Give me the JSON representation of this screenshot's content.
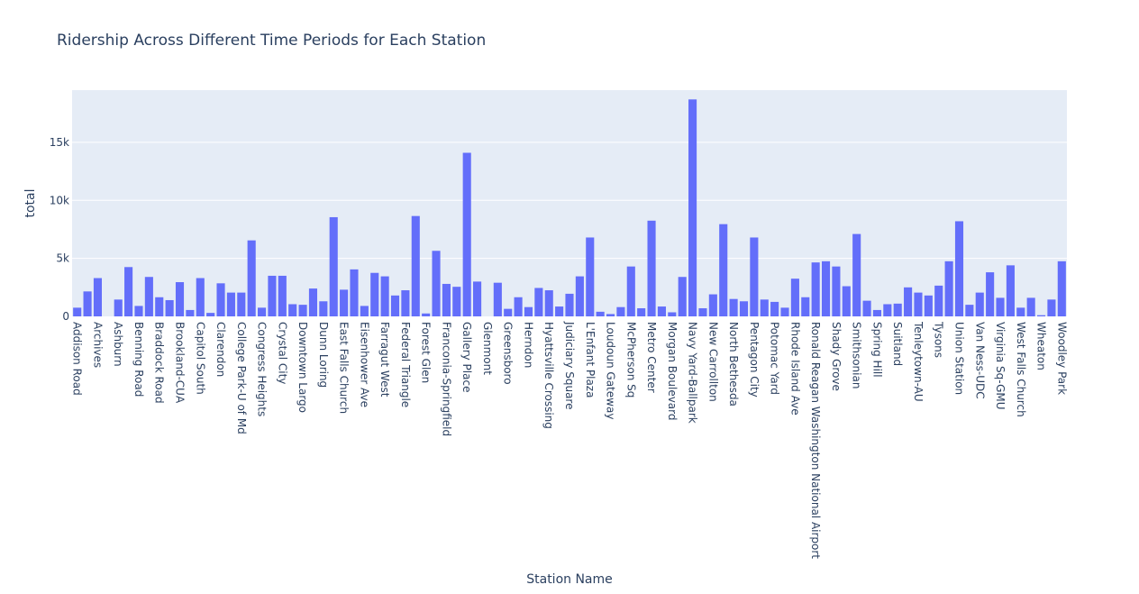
{
  "chart_data": {
    "type": "bar",
    "title": "Ridership Across Different Time Periods for Each Station",
    "xlabel": "Station Name",
    "ylabel": "total",
    "ylim": [
      0,
      19500
    ],
    "yticks": [
      0,
      5000,
      10000,
      15000
    ],
    "ytick_labels": [
      "0",
      "5k",
      "10k",
      "15k"
    ],
    "grid": true,
    "bar_color": "#636efa",
    "plot_bg": "#e5ecf6",
    "categories": [
      "Addison Road",
      "",
      "Archives",
      "",
      "Ashburn",
      "",
      "Benning Road",
      "",
      "Braddock Road",
      "",
      "Brookland-CUA",
      "",
      "Capitol South",
      "",
      "Clarendon",
      "",
      "College Park-U of Md",
      "",
      "Congress Heights",
      "",
      "Crystal City",
      "",
      "Downtown Largo",
      "",
      "Dunn Loring",
      "",
      "East Falls Church",
      "",
      "Eisenhower Ave",
      "",
      "Farragut West",
      "",
      "Federal Triangle",
      "",
      "Forest Glen",
      "",
      "Franconia-Springfield",
      "",
      "Gallery Place",
      "",
      "Glenmont",
      "",
      "Greensboro",
      "",
      "Herndon",
      "",
      "Hyattsville Crossing",
      "",
      "Judiciary Square",
      "",
      "L'Enfant Plaza",
      "",
      "Loudoun Gateway",
      "",
      "McPherson Sq",
      "",
      "Metro Center",
      "",
      "Morgan Boulevard",
      "",
      "Navy Yard-Ballpark",
      "",
      "New Carrollton",
      "",
      "North Bethesda",
      "",
      "Pentagon City",
      "",
      "Potomac Yard",
      "",
      "Rhode Island Ave",
      "",
      "Ronald Reagan Washington National Airport",
      "",
      "Shady Grove",
      "",
      "Smithsonian",
      "",
      "Spring Hill",
      "",
      "Suitland",
      "",
      "Tenleytown-AU",
      "",
      "Tysons",
      "",
      "Union Station",
      "",
      "Van Ness-UDC",
      "",
      "Virginia Sq-GMU",
      "",
      "West Falls Church",
      "",
      "Wheaton",
      "",
      "Woodley Park"
    ],
    "values": [
      750,
      2150,
      3300,
      0,
      1450,
      4250,
      900,
      3400,
      1650,
      1400,
      2950,
      550,
      3300,
      300,
      2850,
      2050,
      2050,
      6550,
      750,
      3500,
      3500,
      1050,
      1000,
      2400,
      1300,
      8550,
      2300,
      4050,
      900,
      3750,
      3450,
      1800,
      2250,
      8650,
      250,
      5650,
      2800,
      2550,
      14100,
      3000,
      0,
      2900,
      650,
      1650,
      800,
      2450,
      2250,
      850,
      1950,
      3450,
      6800,
      400,
      200,
      800,
      4300,
      700,
      8250,
      850,
      350,
      3400,
      18700,
      700,
      1900,
      7950,
      1500,
      1300,
      6800,
      1450,
      1250,
      750,
      3250,
      1650,
      4650,
      4750,
      4300,
      2600,
      7100,
      1350,
      550,
      1050,
      1100,
      2500,
      2050,
      1800,
      2650,
      4750,
      8200,
      1000,
      2050,
      3800,
      1600,
      4400,
      750,
      1600,
      100,
      1450,
      4750
    ]
  }
}
